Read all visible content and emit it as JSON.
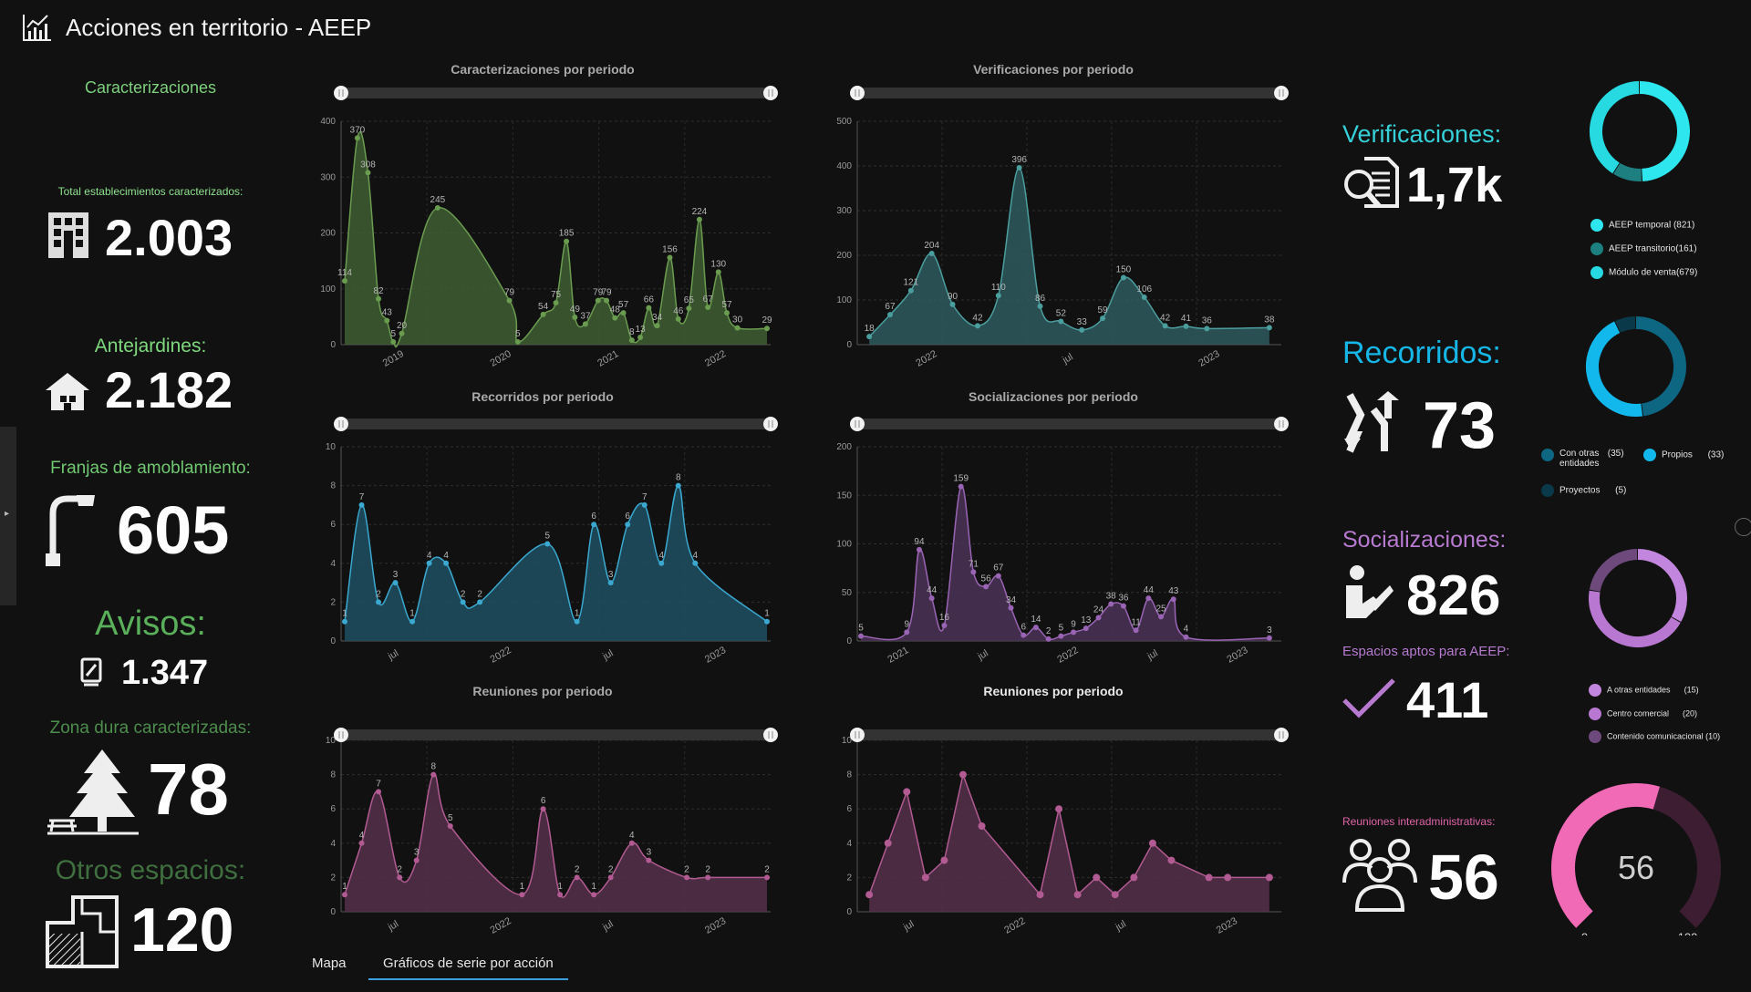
{
  "header": {
    "title": "Acciones en territorio - AEEP",
    "icon": "chart-icon"
  },
  "left": {
    "section_title": "Caracterizaciones",
    "metrics": [
      {
        "label": "Total establecimientos caracterizados:",
        "value": "2.003",
        "icon": "building-icon",
        "color": "#7fe07f"
      },
      {
        "label": "Antejardines:",
        "value": "2.182",
        "icon": "house-icon",
        "color": "#7fd97f"
      },
      {
        "label": "Franjas de amoblamiento:",
        "value": "605",
        "icon": "street-lamp-icon",
        "color": "#70c870"
      },
      {
        "label": "Avisos:",
        "value": "1.347",
        "icon": "sign-icon",
        "color": "#5ab05a"
      },
      {
        "label": "Zona dura caracterizadas:",
        "value": "78",
        "icon": "tree-picnic-icon",
        "color": "#4d8d4d"
      },
      {
        "label": "Otros espacios:",
        "value": "120",
        "icon": "floorplan-icon",
        "color": "#3f6f3f"
      }
    ]
  },
  "charts": [
    {
      "id": "caracterizaciones",
      "title": "Caracterizaciones por periodo",
      "color": "#6a9c50",
      "fill": "#3f5e32",
      "ymax": 400,
      "yticks": [
        "0",
        "100",
        "200",
        "300",
        "400"
      ],
      "xlabels": [
        "2019",
        "2020",
        "2021",
        "2022"
      ],
      "points": [
        [
          0,
          114
        ],
        [
          0.03,
          370
        ],
        [
          0.055,
          308
        ],
        [
          0.08,
          82
        ],
        [
          0.1,
          43
        ],
        [
          0.115,
          5
        ],
        [
          0.135,
          20
        ],
        [
          0.22,
          245
        ],
        [
          0.39,
          79
        ],
        [
          0.41,
          5
        ],
        [
          0.47,
          54
        ],
        [
          0.5,
          75
        ],
        [
          0.525,
          185
        ],
        [
          0.545,
          49
        ],
        [
          0.57,
          37
        ],
        [
          0.6,
          79
        ],
        [
          0.62,
          79
        ],
        [
          0.64,
          48
        ],
        [
          0.66,
          57
        ],
        [
          0.68,
          8
        ],
        [
          0.7,
          13
        ],
        [
          0.72,
          66
        ],
        [
          0.74,
          34
        ],
        [
          0.77,
          156
        ],
        [
          0.79,
          46
        ],
        [
          0.815,
          65
        ],
        [
          0.84,
          224
        ],
        [
          0.86,
          67
        ],
        [
          0.885,
          130
        ],
        [
          0.905,
          57
        ],
        [
          0.93,
          30
        ],
        [
          1,
          29
        ]
      ],
      "labels": [
        "114",
        "370",
        "308",
        "82",
        "43",
        "5",
        "20",
        "245",
        "79",
        "5",
        "54",
        "75",
        "185",
        "49",
        "37",
        "79",
        "79",
        "48",
        "57",
        "8",
        "13",
        "66",
        "34",
        "156",
        "46",
        "65",
        "224",
        "67",
        "130",
        "57",
        "30",
        "29"
      ]
    },
    {
      "id": "verificaciones",
      "title": "Verificaciones por periodo",
      "color": "#4b9e9e",
      "fill": "#2f5b5e",
      "ymax": 500,
      "yticks": [
        "0",
        "100",
        "200",
        "300",
        "400",
        "500"
      ],
      "xlabels": [
        "2022",
        "jul",
        "2023"
      ],
      "points": [
        [
          0.02,
          18
        ],
        [
          0.07,
          67
        ],
        [
          0.12,
          121
        ],
        [
          0.17,
          204
        ],
        [
          0.22,
          90
        ],
        [
          0.28,
          42
        ],
        [
          0.33,
          110
        ],
        [
          0.38,
          396
        ],
        [
          0.43,
          86
        ],
        [
          0.48,
          52
        ],
        [
          0.53,
          33
        ],
        [
          0.58,
          59
        ],
        [
          0.63,
          150
        ],
        [
          0.68,
          106
        ],
        [
          0.73,
          42
        ],
        [
          0.78,
          41
        ],
        [
          0.83,
          36
        ],
        [
          0.98,
          38
        ]
      ],
      "labels": [
        "18",
        "67",
        "121",
        "204",
        "90",
        "42",
        "110",
        "396",
        "86",
        "52",
        "33",
        "59",
        "150",
        "106",
        "42",
        "41",
        "36",
        "38"
      ]
    },
    {
      "id": "recorridos",
      "title": "Recorridos por periodo",
      "color": "#3aa8cf",
      "fill": "#1f4f63",
      "ymax": 10,
      "yticks": [
        "0",
        "2",
        "4",
        "6",
        "8",
        "10"
      ],
      "xlabels": [
        "jul",
        "2022",
        "jul",
        "2023"
      ],
      "points": [
        [
          0,
          1
        ],
        [
          0.04,
          7
        ],
        [
          0.08,
          2
        ],
        [
          0.12,
          3
        ],
        [
          0.16,
          1
        ],
        [
          0.2,
          4
        ],
        [
          0.24,
          4
        ],
        [
          0.28,
          2
        ],
        [
          0.32,
          2
        ],
        [
          0.48,
          5
        ],
        [
          0.55,
          1
        ],
        [
          0.59,
          6
        ],
        [
          0.63,
          3
        ],
        [
          0.67,
          6
        ],
        [
          0.71,
          7
        ],
        [
          0.75,
          4
        ],
        [
          0.79,
          8
        ],
        [
          0.83,
          4
        ],
        [
          1,
          1
        ]
      ],
      "labels": [
        "1",
        "7",
        "2",
        "3",
        "1",
        "4",
        "4",
        "2",
        "2",
        "5",
        "1",
        "6",
        "3",
        "6",
        "7",
        "4",
        "8",
        "4",
        "1"
      ]
    },
    {
      "id": "socializaciones",
      "title": "Socializaciones por periodo",
      "color": "#9a64b4",
      "fill": "#4b3257",
      "ymax": 200,
      "yticks": [
        "0",
        "50",
        "100",
        "150",
        "200"
      ],
      "xlabels": [
        "2021",
        "jul",
        "2022",
        "jul",
        "2023"
      ],
      "points": [
        [
          0,
          5
        ],
        [
          0.11,
          9
        ],
        [
          0.14,
          94
        ],
        [
          0.17,
          44
        ],
        [
          0.2,
          16
        ],
        [
          0.24,
          159
        ],
        [
          0.27,
          71
        ],
        [
          0.3,
          56
        ],
        [
          0.33,
          67
        ],
        [
          0.36,
          34
        ],
        [
          0.39,
          6
        ],
        [
          0.42,
          14
        ],
        [
          0.45,
          2
        ],
        [
          0.48,
          5
        ],
        [
          0.51,
          9
        ],
        [
          0.54,
          13
        ],
        [
          0.57,
          24
        ],
        [
          0.6,
          38
        ],
        [
          0.63,
          36
        ],
        [
          0.66,
          11
        ],
        [
          0.69,
          44
        ],
        [
          0.72,
          25
        ],
        [
          0.75,
          43
        ],
        [
          0.78,
          4
        ],
        [
          0.98,
          3
        ]
      ],
      "labels": [
        "5",
        "9",
        "94",
        "44",
        "16",
        "159",
        "71",
        "56",
        "67",
        "34",
        "6",
        "14",
        "2",
        "5",
        "9",
        "13",
        "24",
        "38",
        "36",
        "11",
        "44",
        "25",
        "43",
        "4",
        "3"
      ]
    },
    {
      "id": "reuniones1",
      "title": "Reuniones por periodo",
      "color": "#b25a92",
      "fill": "#55304a",
      "ymax": 10,
      "yticks": [
        "0",
        "2",
        "4",
        "6",
        "8",
        "10"
      ],
      "xlabels": [
        "jul",
        "2022",
        "jul",
        "2023"
      ],
      "points": [
        [
          0,
          1
        ],
        [
          0.04,
          4
        ],
        [
          0.08,
          7
        ],
        [
          0.13,
          2
        ],
        [
          0.17,
          3
        ],
        [
          0.21,
          8
        ],
        [
          0.25,
          5
        ],
        [
          0.42,
          1
        ],
        [
          0.47,
          6
        ],
        [
          0.51,
          1
        ],
        [
          0.55,
          2
        ],
        [
          0.59,
          1
        ],
        [
          0.63,
          2
        ],
        [
          0.68,
          4
        ],
        [
          0.72,
          3
        ],
        [
          0.81,
          2
        ],
        [
          0.86,
          2
        ],
        [
          1,
          2
        ]
      ],
      "labels": [
        "1",
        "4",
        "7",
        "2",
        "3",
        "8",
        "5",
        "1",
        "6",
        "1",
        "2",
        "1",
        "2",
        "4",
        "3",
        "2",
        "2",
        "2"
      ]
    },
    {
      "id": "reuniones2",
      "title": "Reuniones por periodo",
      "color": "#b25a92",
      "fill": "#55304a",
      "ymax": 10,
      "yticks": [
        "0",
        "2",
        "4",
        "6",
        "8",
        "10"
      ],
      "xlabels": [
        "jul",
        "2022",
        "jul",
        "2023"
      ],
      "points": [
        [
          0.02,
          1
        ],
        [
          0.065,
          4
        ],
        [
          0.11,
          7
        ],
        [
          0.155,
          2
        ],
        [
          0.2,
          3
        ],
        [
          0.245,
          8
        ],
        [
          0.29,
          5
        ],
        [
          0.43,
          1
        ],
        [
          0.475,
          6
        ],
        [
          0.52,
          1
        ],
        [
          0.565,
          2
        ],
        [
          0.61,
          1
        ],
        [
          0.655,
          2
        ],
        [
          0.7,
          4
        ],
        [
          0.745,
          3
        ],
        [
          0.835,
          2
        ],
        [
          0.88,
          2
        ],
        [
          0.98,
          2
        ]
      ],
      "labels": []
    }
  ],
  "right": {
    "verificaciones": {
      "label": "Verificaciones:",
      "value": "1,7k",
      "icon": "document-search-icon",
      "color": "#35d0d8",
      "donut": [
        {
          "value": 821,
          "color": "#2ee6ee"
        },
        {
          "value": 161,
          "color": "#1e7f80"
        },
        {
          "value": 679,
          "color": "#27d9e1"
        }
      ],
      "legend": [
        {
          "name": "AEEP temporal",
          "count": "(821)",
          "color": "#2ee6ee"
        },
        {
          "name": "AEEP transitorio",
          "count": "(161)",
          "color": "#1e7f80"
        },
        {
          "name": "Módulo de venta",
          "count": "(679)",
          "color": "#27d9e1"
        }
      ]
    },
    "recorridos": {
      "label": "Recorridos:",
      "value": "73",
      "icon": "route-arrows-icon",
      "color": "#16b6e6",
      "donut": [
        {
          "value": 35,
          "color": "#0d6682"
        },
        {
          "value": 33,
          "color": "#12b8ec"
        },
        {
          "value": 5,
          "color": "#0a3a4a"
        }
      ],
      "legend": [
        {
          "name": "Con otras entidades",
          "count": "(35)",
          "color": "#0d6682"
        },
        {
          "name": "Propios",
          "count": "(33)",
          "color": "#12b8ec"
        },
        {
          "name": "Proyectos",
          "count": "(5)",
          "color": "#0a3a4a"
        }
      ]
    },
    "socializaciones": {
      "label": "Socializaciones:",
      "value": "826",
      "icon": "hand-writing-icon",
      "color": "#b77ad0",
      "donut": [
        {
          "value": 15,
          "color": "#c386de"
        },
        {
          "value": 20,
          "color": "#b878d2"
        },
        {
          "value": 10,
          "color": "#6e4a7c"
        }
      ],
      "legend": [
        {
          "name": "A otras entidades",
          "count": "(15)",
          "color": "#c386de"
        },
        {
          "name": "Centro comercial",
          "count": "(20)",
          "color": "#b878d2"
        },
        {
          "name": "Contenido comunicacional",
          "count": "(10)",
          "color": "#6e4a7c"
        }
      ]
    },
    "espacios": {
      "label": "Espacios aptos para AEEP:",
      "value": "411",
      "icon": "checkmark-icon",
      "color": "#b77ad0"
    },
    "reuniones": {
      "label": "Reuniones interadministrativas:",
      "value": "56",
      "icon": "people-group-icon",
      "color": "#e064a8",
      "gauge": {
        "value": 56,
        "min": "0",
        "max": "100",
        "display": "56",
        "color": "#f06ab6",
        "track": "#3d1d31"
      }
    }
  },
  "tabs": [
    {
      "label": "Mapa",
      "active": false
    },
    {
      "label": "Gráficos de serie por acción",
      "active": true
    }
  ]
}
